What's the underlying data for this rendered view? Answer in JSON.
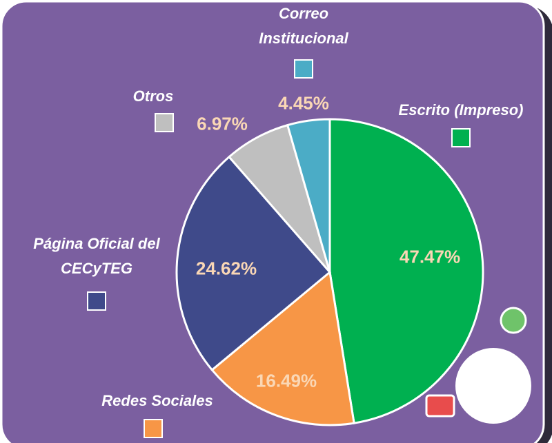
{
  "chart_data": {
    "type": "pie",
    "categories": [
      "Escrito (Impreso)",
      "Redes Sociales",
      "Página Oficial del CECyTEG",
      "Otros",
      "Correo Institucional"
    ],
    "values": [
      47.47,
      16.49,
      24.62,
      6.97,
      4.45
    ],
    "value_labels": [
      "47.47%",
      "16.49%",
      "24.62%",
      "6.97%",
      "4.45%"
    ],
    "colors": [
      "#00b050",
      "#f79646",
      "#3f4a8a",
      "#bfbfbf",
      "#4bacc6"
    ]
  }
}
